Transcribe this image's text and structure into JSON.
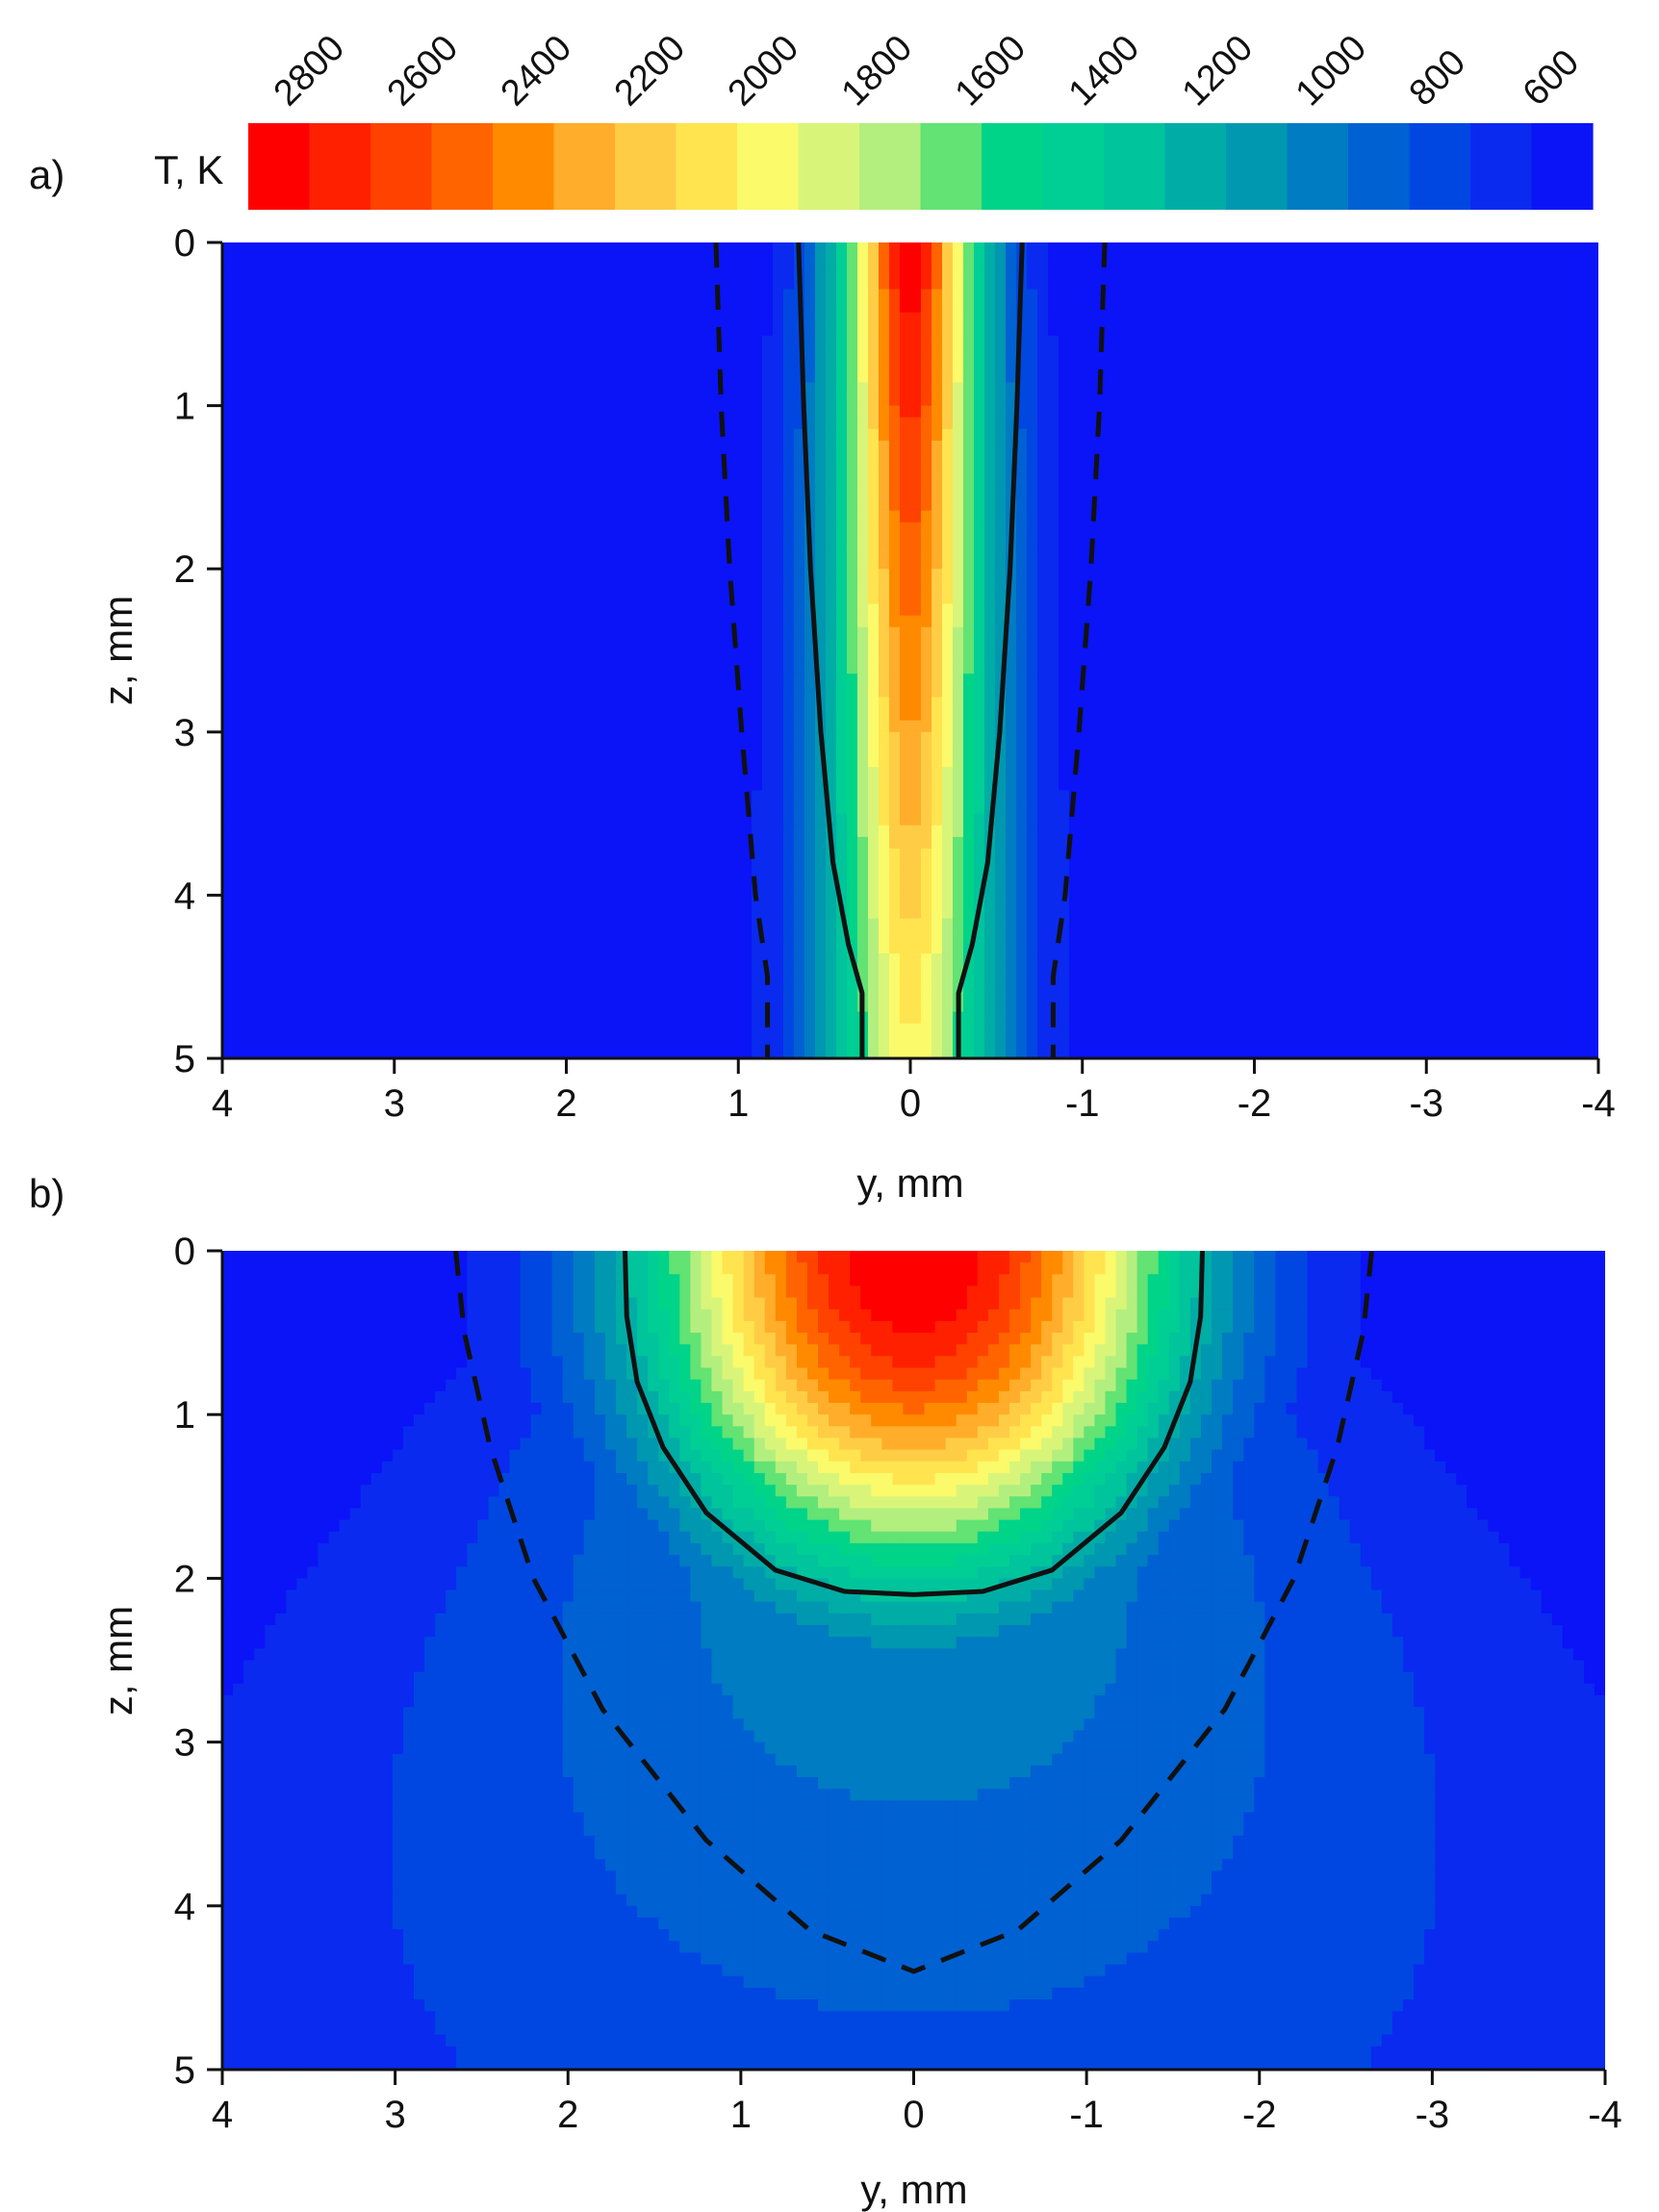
{
  "colorbar": {
    "label": "T, K",
    "tick_labels": [
      "2800",
      "2600",
      "2400",
      "2200",
      "2000",
      "1800",
      "1600",
      "1400",
      "1200",
      "1000",
      "800",
      "600"
    ],
    "colors": [
      "#ff0000",
      "#ff2000",
      "#ff4200",
      "#ff6400",
      "#ff8a00",
      "#ffad2a",
      "#ffcd45",
      "#ffe44f",
      "#fafa6a",
      "#d8f57a",
      "#b3ef7e",
      "#62e374",
      "#00d488",
      "#00cf95",
      "#00c49c",
      "#00ada6",
      "#0097b0",
      "#007cc2",
      "#0061d3",
      "#0047e2",
      "#0a2af0",
      "#0a14f7"
    ]
  },
  "chart_data": [
    {
      "type": "heatmap",
      "panel_label": "a)",
      "xlabel": "y, mm",
      "ylabel": "z, mm",
      "x_ticks": [
        "4",
        "3",
        "2",
        "1",
        "0",
        "-1",
        "-2",
        "-3",
        "-4"
      ],
      "y_ticks": [
        "0",
        "1",
        "2",
        "3",
        "4",
        "5"
      ],
      "xlim": [
        4,
        -4
      ],
      "ylim": [
        0,
        5
      ],
      "colorbar_range_K": [
        500,
        2900
      ],
      "temperature_field": {
        "peak_K": 2900,
        "ambient_K": 500,
        "center_y_mm": 0
      },
      "contour_solid": {
        "style": "solid",
        "right_y_mm": [
          -0.65,
          -0.62,
          -0.58,
          -0.52,
          -0.45,
          -0.36,
          -0.28,
          -0.28
        ],
        "left_y_mm": [
          0.65,
          0.62,
          0.58,
          0.52,
          0.45,
          0.36,
          0.28,
          0.28
        ],
        "z_mm": [
          0,
          1,
          2,
          3,
          3.8,
          4.3,
          4.6,
          5
        ]
      },
      "contour_dashed": {
        "style": "dashed",
        "right_y_mm": [
          -1.13,
          -1.1,
          -1.05,
          -0.98,
          -0.9,
          -0.83,
          -0.83
        ],
        "left_y_mm": [
          1.13,
          1.1,
          1.05,
          0.98,
          0.9,
          0.83,
          0.83
        ],
        "z_mm": [
          0,
          1,
          2,
          3,
          4,
          4.5,
          5
        ]
      }
    },
    {
      "type": "heatmap",
      "panel_label": "b)",
      "xlabel": "y, mm",
      "ylabel": "z, mm",
      "x_ticks": [
        "4",
        "3",
        "2",
        "1",
        "0",
        "-1",
        "-2",
        "-3",
        "-4"
      ],
      "y_ticks": [
        "0",
        "1",
        "2",
        "3",
        "4",
        "5"
      ],
      "xlim": [
        4,
        -4
      ],
      "ylim": [
        0,
        5
      ],
      "colorbar_range_K": [
        500,
        2900
      ],
      "temperature_field": {
        "peak_K": 2900,
        "ambient_K": 500,
        "center_y_mm": 0
      },
      "contour_solid": {
        "style": "solid",
        "right_y_mm": [
          -1.67,
          -1.66,
          -1.6,
          -1.45,
          -1.2,
          -0.8,
          -0.4,
          0
        ],
        "left_y_mm": [
          1.67,
          1.66,
          1.6,
          1.45,
          1.2,
          0.8,
          0.4,
          0
        ],
        "z_mm": [
          0,
          0.4,
          0.8,
          1.2,
          1.6,
          1.95,
          2.08,
          2.1
        ]
      },
      "contour_dashed": {
        "style": "dashed",
        "right_y_mm": [
          -2.65,
          -2.6,
          -2.45,
          -2.2,
          -1.8,
          -1.2,
          -0.6,
          0
        ],
        "left_y_mm": [
          2.65,
          2.6,
          2.45,
          2.2,
          1.8,
          1.2,
          0.6,
          0
        ],
        "z_mm": [
          0,
          0.5,
          1.2,
          2,
          2.8,
          3.6,
          4.15,
          4.4
        ]
      }
    }
  ]
}
